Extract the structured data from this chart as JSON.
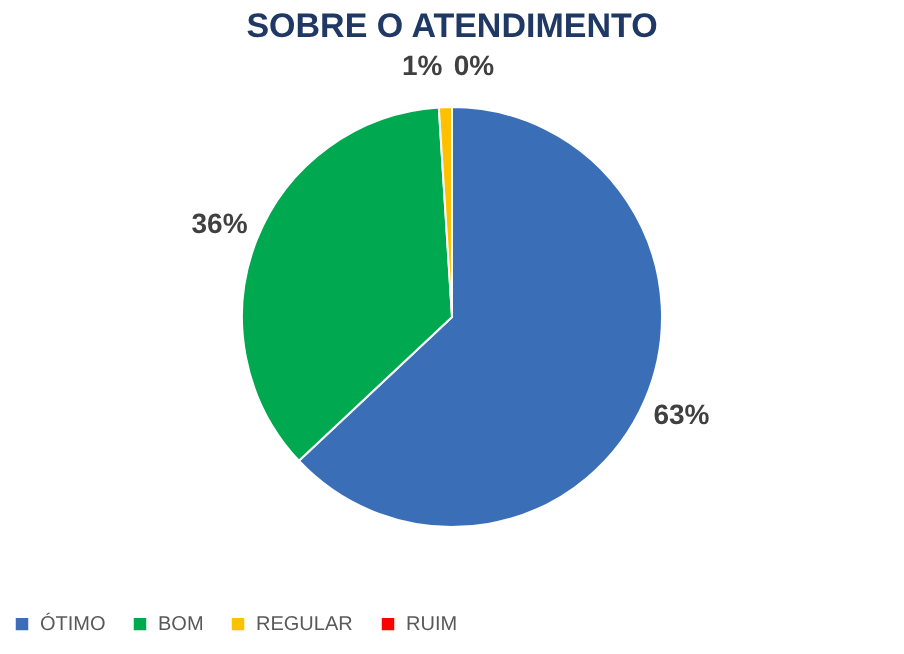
{
  "chart_data": {
    "type": "pie",
    "title": "SOBRE O ATENDIMENTO",
    "categories": [
      "ÓTIMO",
      "BOM",
      "REGULAR",
      "RUIM"
    ],
    "values": [
      63,
      36,
      1,
      0
    ],
    "colors": [
      "#3a6fb8",
      "#00a84f",
      "#ffc000",
      "#ff0000"
    ],
    "value_labels": [
      "63%",
      "36%",
      "1%",
      "0%"
    ],
    "legend": "bottom"
  }
}
